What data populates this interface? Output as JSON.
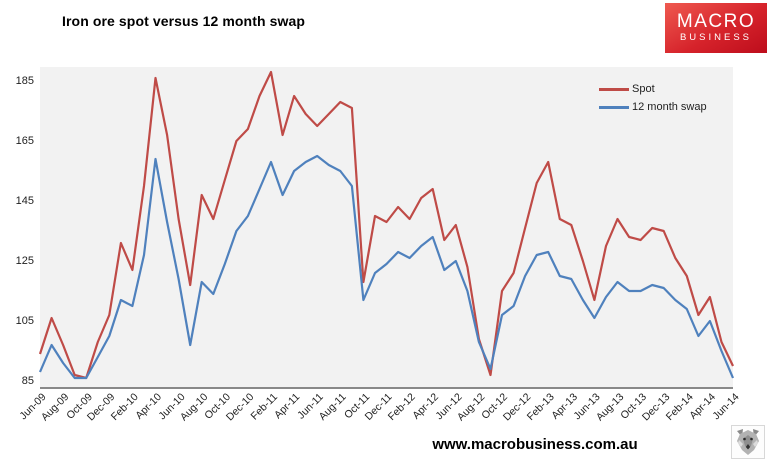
{
  "header": {
    "title": "Iron ore spot versus 12 month swap",
    "logo_line1": "MACRO",
    "logo_line2": "BUSINESS"
  },
  "footer": {
    "url": "www.macrobusiness.com.au",
    "wolf_icon": "wolf-logo"
  },
  "colors": {
    "spot": "#bf4b47",
    "swap": "#4f81bd",
    "plot_background": "#f2f2f2",
    "axis_line": "#898989",
    "logo_red": "#d6232b",
    "text": "#1f1f1f"
  },
  "chart_data": {
    "type": "line",
    "title": "Iron ore spot versus 12 month swap",
    "xlabel": "",
    "ylabel": "",
    "ylim": [
      85,
      191
    ],
    "yticks": [
      85,
      105,
      125,
      145,
      165,
      185
    ],
    "grid": false,
    "legend_position": "top-right",
    "x": [
      "Jun-09",
      "Jul-09",
      "Aug-09",
      "Sep-09",
      "Oct-09",
      "Nov-09",
      "Dec-09",
      "Jan-10",
      "Feb-10",
      "Mar-10",
      "Apr-10",
      "May-10",
      "Jun-10",
      "Jul-10",
      "Aug-10",
      "Sep-10",
      "Oct-10",
      "Nov-10",
      "Dec-10",
      "Jan-11",
      "Feb-11",
      "Mar-11",
      "Apr-11",
      "May-11",
      "Jun-11",
      "Jul-11",
      "Aug-11",
      "Sep-11",
      "Oct-11",
      "Nov-11",
      "Dec-11",
      "Jan-12",
      "Feb-12",
      "Mar-12",
      "Apr-12",
      "May-12",
      "Jun-12",
      "Jul-12",
      "Aug-12",
      "Sep-12",
      "Oct-12",
      "Nov-12",
      "Dec-12",
      "Jan-13",
      "Feb-13",
      "Mar-13",
      "Apr-13",
      "May-13",
      "Jun-13",
      "Jul-13",
      "Aug-13",
      "Sep-13",
      "Oct-13",
      "Nov-13",
      "Dec-13",
      "Jan-14",
      "Feb-14",
      "Mar-14",
      "Apr-14",
      "May-14",
      "Jun-14"
    ],
    "x_tick_labels": [
      "Jun-09",
      "Aug-09",
      "Oct-09",
      "Dec-09",
      "Feb-10",
      "Apr-10",
      "Jun-10",
      "Aug-10",
      "Oct-10",
      "Dec-10",
      "Feb-11",
      "Apr-11",
      "Jun-11",
      "Aug-11",
      "Oct-11",
      "Dec-11",
      "Feb-12",
      "Apr-12",
      "Jun-12",
      "Aug-12",
      "Oct-12",
      "Dec-12",
      "Feb-13",
      "Apr-13",
      "Jun-13",
      "Aug-13",
      "Oct-13",
      "Dec-13",
      "Feb-14",
      "Apr-14",
      "Jun-14"
    ],
    "series": [
      {
        "name": "Spot",
        "color": "#bf4b47",
        "values": [
          94,
          106,
          97,
          87,
          86,
          98,
          107,
          131,
          122,
          150,
          186,
          167,
          139,
          117,
          147,
          139,
          152,
          165,
          169,
          180,
          188,
          167,
          180,
          174,
          170,
          174,
          178,
          176,
          118,
          140,
          138,
          143,
          139,
          146,
          149,
          132,
          137,
          123,
          99,
          87,
          115,
          121,
          136,
          151,
          158,
          139,
          137,
          125,
          112,
          130,
          139,
          133,
          132,
          136,
          135,
          126,
          120,
          107,
          113,
          98,
          90
        ]
      },
      {
        "name": "12 month swap",
        "color": "#4f81bd",
        "values": [
          88,
          97,
          91,
          86,
          86,
          93,
          100,
          112,
          110,
          127,
          159,
          138,
          119,
          97,
          118,
          114,
          124,
          135,
          140,
          149,
          158,
          147,
          155,
          158,
          160,
          157,
          155,
          150,
          112,
          121,
          124,
          128,
          126,
          130,
          133,
          122,
          125,
          115,
          98,
          89,
          107,
          110,
          120,
          127,
          128,
          120,
          119,
          112,
          106,
          113,
          118,
          115,
          115,
          117,
          116,
          112,
          109,
          100,
          105,
          95,
          86
        ]
      }
    ]
  }
}
